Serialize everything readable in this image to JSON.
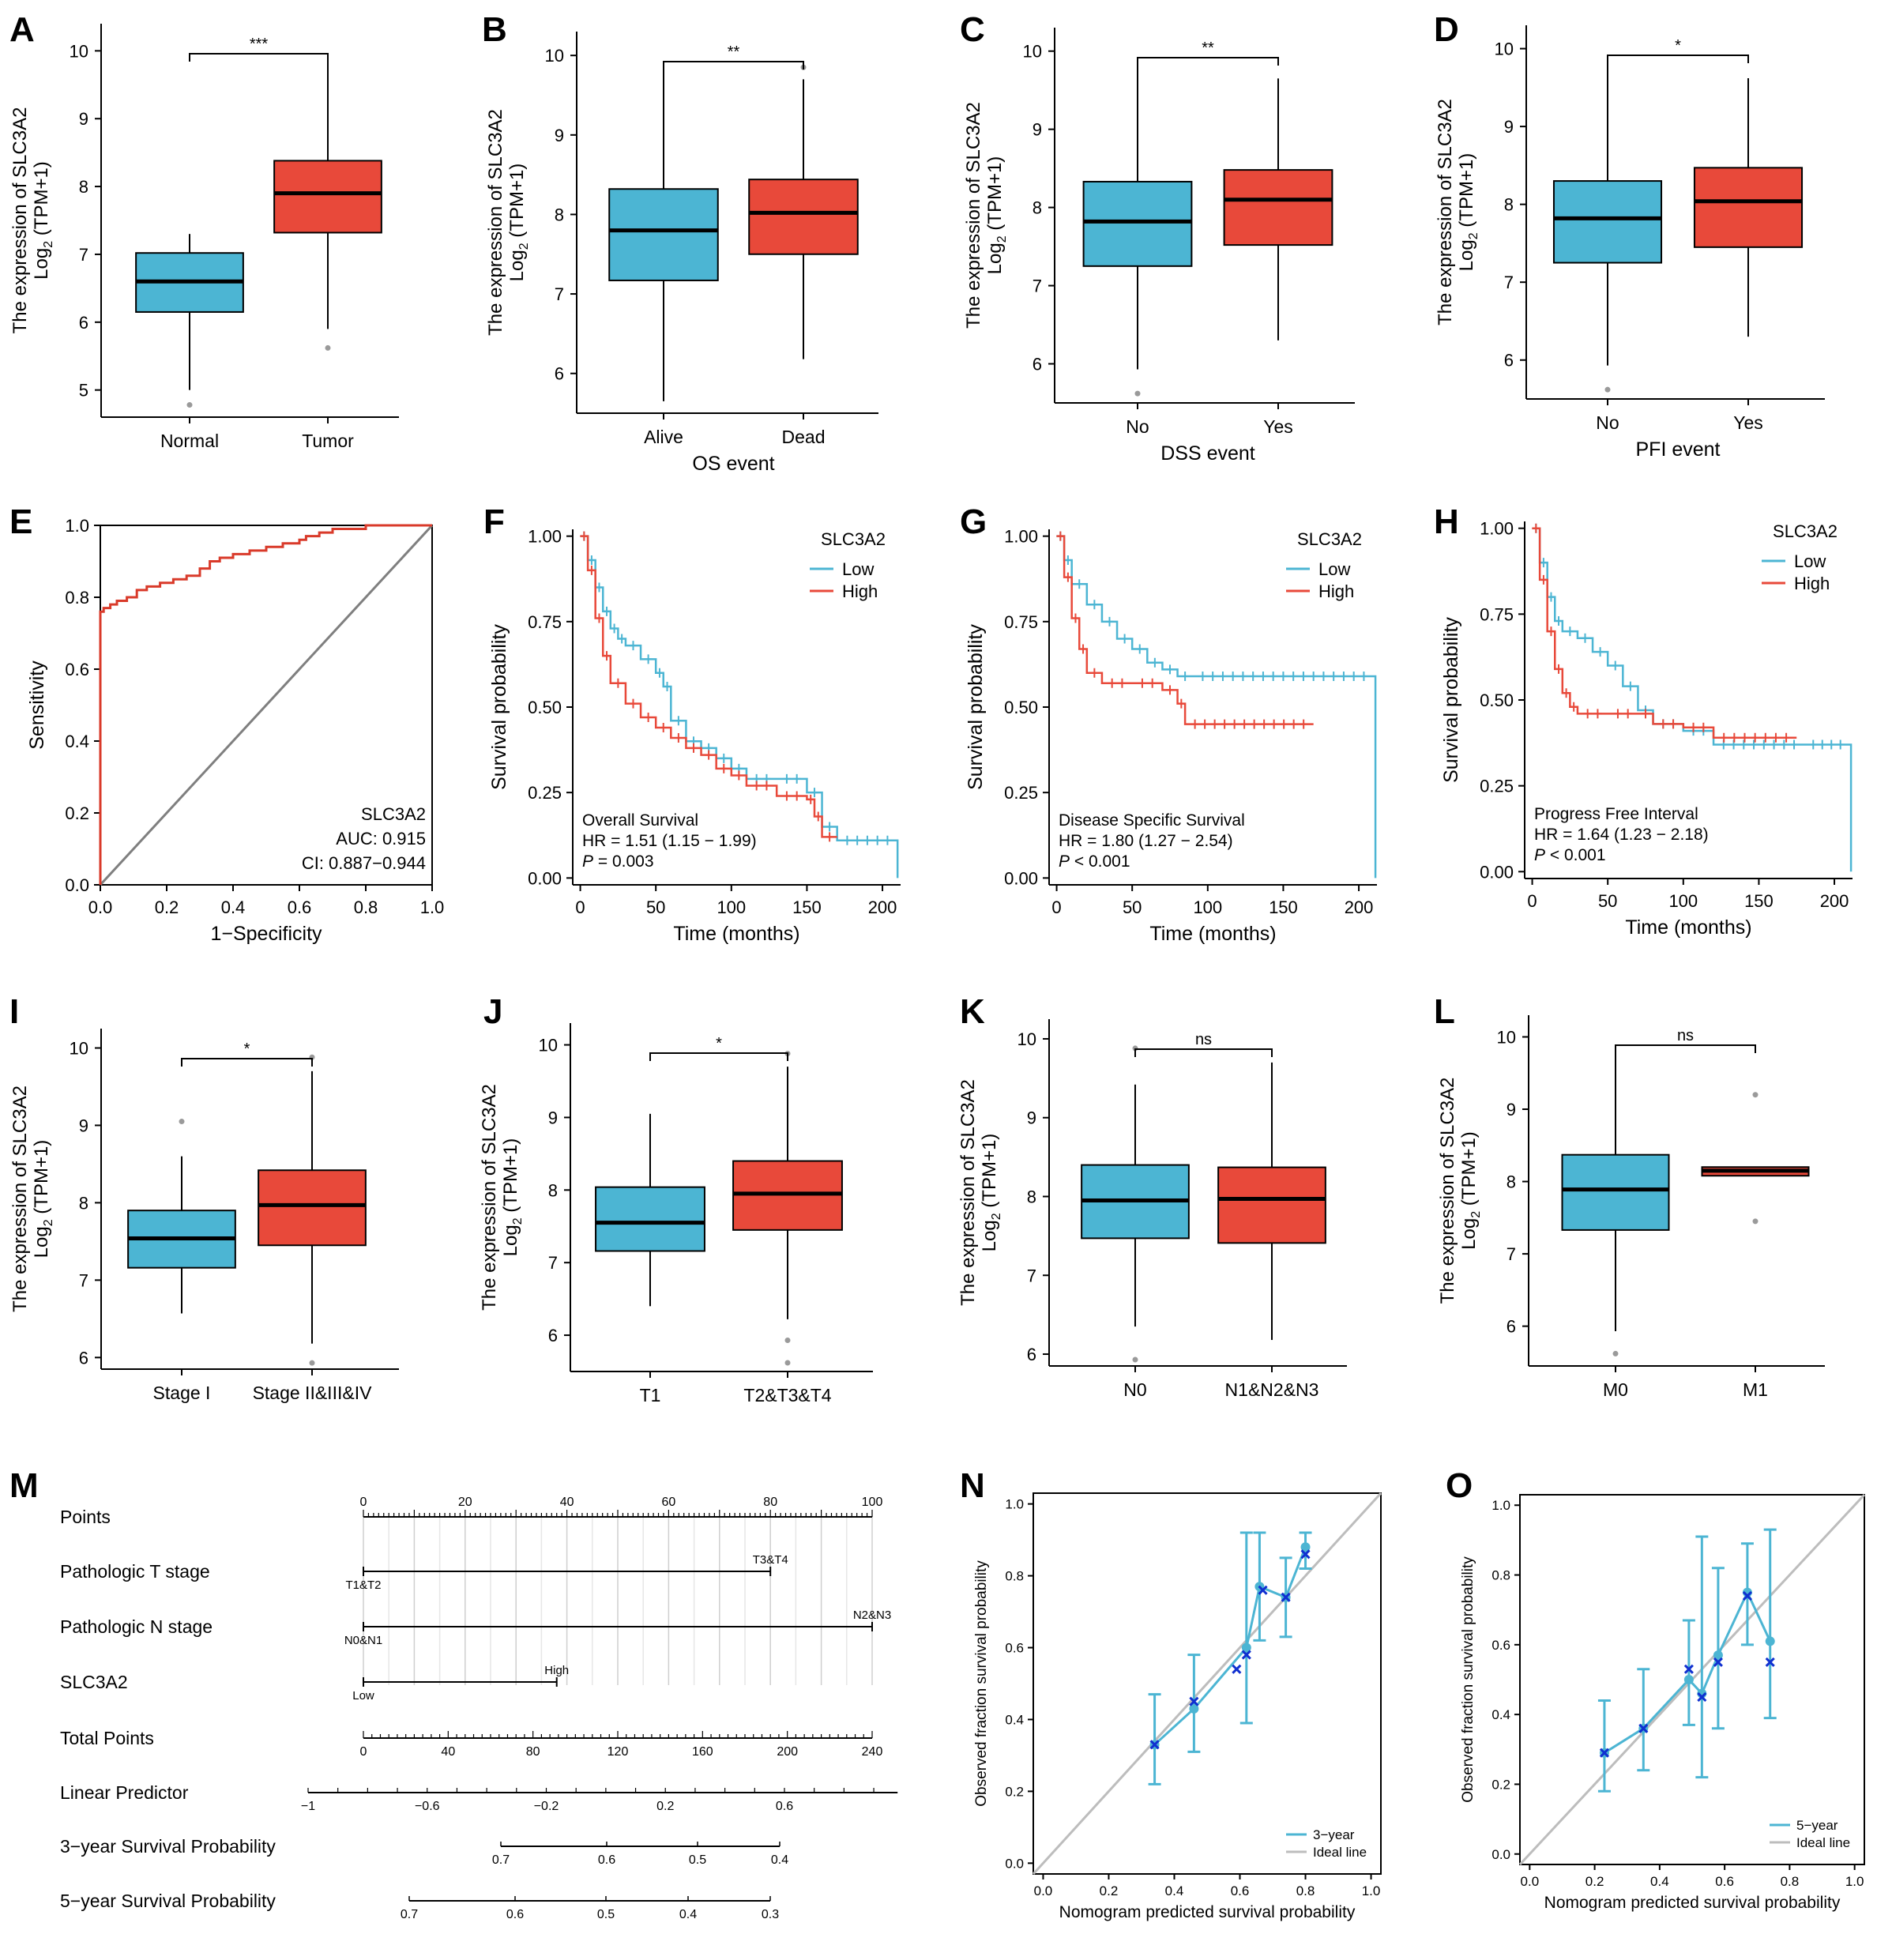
{
  "colors": {
    "low": "#4cb5d3",
    "high": "#e8493a",
    "axis": "#000000",
    "diag": "#7f7f7f",
    "roc": "#d93a2a",
    "calib": "#4cb5d3",
    "calibMark": "#1030d0",
    "ideal": "#bdbdbd",
    "outlier": "#9a9a9a"
  },
  "chart_data": [
    {
      "panel": "A",
      "type": "boxplot",
      "ylabel1": "The expression of SLC3A2",
      "ylabel2": "Log",
      "ylabel2_sub": "2",
      "ylabel2_tail": " (TPM+1)",
      "xlabel": "",
      "ylim": [
        4.6,
        10.4
      ],
      "yticks": [
        "5",
        "6",
        "7",
        "8",
        "9",
        "10"
      ],
      "categories": [
        "Normal",
        "Tumor"
      ],
      "sig": "***",
      "boxes": [
        {
          "q1": 6.15,
          "median": 6.6,
          "q3": 7.02,
          "whiskerLow": 5.0,
          "whiskerHigh": 7.3,
          "outliers": [
            4.78
          ]
        },
        {
          "q1": 7.32,
          "median": 7.9,
          "q3": 8.38,
          "whiskerLow": 5.9,
          "whiskerHigh": 9.85,
          "outliers": [
            5.62
          ]
        }
      ]
    },
    {
      "panel": "B",
      "type": "boxplot",
      "ylabel1": "The expression of SLC3A2",
      "ylabel2": "Log",
      "ylabel2_sub": "2",
      "ylabel2_tail": " (TPM+1)",
      "xlabel": "OS event",
      "ylim": [
        5.5,
        10.3
      ],
      "yticks": [
        "6",
        "7",
        "8",
        "9",
        "10"
      ],
      "categories": [
        "Alive",
        "Dead"
      ],
      "sig": "**",
      "boxes": [
        {
          "q1": 7.17,
          "median": 7.8,
          "q3": 8.32,
          "whiskerLow": 5.65,
          "whiskerHigh": 9.85,
          "outliers": []
        },
        {
          "q1": 7.5,
          "median": 8.02,
          "q3": 8.44,
          "whiskerLow": 6.18,
          "whiskerHigh": 9.7,
          "outliers": [
            9.85
          ]
        }
      ]
    },
    {
      "panel": "C",
      "type": "boxplot",
      "ylabel1": "The expression of SLC3A2",
      "ylabel2": "Log",
      "ylabel2_sub": "2",
      "ylabel2_tail": " (TPM+1)",
      "xlabel": "DSS event",
      "ylim": [
        5.5,
        10.3
      ],
      "yticks": [
        "6",
        "7",
        "8",
        "9",
        "10"
      ],
      "categories": [
        "No",
        "Yes"
      ],
      "sig": "**",
      "boxes": [
        {
          "q1": 7.25,
          "median": 7.82,
          "q3": 8.33,
          "whiskerLow": 5.93,
          "whiskerHigh": 9.85,
          "outliers": [
            5.62
          ]
        },
        {
          "q1": 7.52,
          "median": 8.1,
          "q3": 8.48,
          "whiskerLow": 6.3,
          "whiskerHigh": 9.65,
          "outliers": []
        }
      ]
    },
    {
      "panel": "D",
      "type": "boxplot",
      "ylabel1": "The expression of SLC3A2",
      "ylabel2": "Log",
      "ylabel2_sub": "2",
      "ylabel2_tail": " (TPM+1)",
      "xlabel": "PFI event",
      "ylim": [
        5.5,
        10.3
      ],
      "yticks": [
        "6",
        "7",
        "8",
        "9",
        "10"
      ],
      "categories": [
        "No",
        "Yes"
      ],
      "sig": "*",
      "boxes": [
        {
          "q1": 7.25,
          "median": 7.82,
          "q3": 8.3,
          "whiskerLow": 5.93,
          "whiskerHigh": 9.85,
          "outliers": [
            5.62
          ]
        },
        {
          "q1": 7.45,
          "median": 8.04,
          "q3": 8.47,
          "whiskerLow": 6.3,
          "whiskerHigh": 9.62,
          "outliers": []
        }
      ]
    },
    {
      "panel": "E",
      "type": "line",
      "subtype": "roc",
      "xlabel": "1−Specificity",
      "ylabel": "Sensitivity",
      "xlim": [
        0,
        1
      ],
      "ylim": [
        0,
        1
      ],
      "xticks": [
        "0.0",
        "0.2",
        "0.4",
        "0.6",
        "0.8",
        "1.0"
      ],
      "yticks": [
        "0.0",
        "0.2",
        "0.4",
        "0.6",
        "0.8",
        "1.0"
      ],
      "x": [
        0,
        0,
        0.01,
        0.03,
        0.05,
        0.08,
        0.11,
        0.14,
        0.18,
        0.22,
        0.26,
        0.3,
        0.33,
        0.36,
        0.4,
        0.45,
        0.5,
        0.55,
        0.6,
        0.62,
        0.66,
        0.7,
        0.75,
        0.8,
        0.86,
        0.92,
        1.0
      ],
      "y": [
        0,
        0.76,
        0.77,
        0.78,
        0.79,
        0.8,
        0.82,
        0.83,
        0.84,
        0.85,
        0.86,
        0.88,
        0.9,
        0.91,
        0.92,
        0.93,
        0.94,
        0.95,
        0.96,
        0.97,
        0.98,
        0.99,
        0.99,
        1.0,
        1.0,
        1.0,
        1.0
      ],
      "ann": [
        "SLC3A2",
        "AUC: 0.915",
        "CI: 0.887−0.944"
      ]
    },
    {
      "panel": "F",
      "type": "line",
      "subtype": "km",
      "xlabel": "Time (months)",
      "ylabel": "Survival probability",
      "xlim": [
        -5,
        212
      ],
      "ylim": [
        -0.02,
        1.02
      ],
      "xticks": [
        "0",
        "50",
        "100",
        "150",
        "200"
      ],
      "yticks": [
        "0.00",
        "0.25",
        "0.50",
        "0.75",
        "1.00"
      ],
      "legend_title": "SLC3A2",
      "legend": [
        "Low",
        "High"
      ],
      "ann": [
        "Overall Survival",
        "HR = 1.51 (1.15 − 1.99)",
        "P",
        " = 0.003"
      ],
      "series": [
        {
          "name": "Low",
          "x": [
            0,
            5,
            10,
            15,
            20,
            25,
            30,
            40,
            50,
            55,
            60,
            70,
            80,
            90,
            100,
            110,
            130,
            150,
            160,
            170,
            210
          ],
          "y": [
            1.0,
            0.93,
            0.85,
            0.78,
            0.73,
            0.7,
            0.68,
            0.64,
            0.6,
            0.56,
            0.46,
            0.4,
            0.38,
            0.35,
            0.32,
            0.29,
            0.29,
            0.25,
            0.15,
            0.11,
            0.0
          ]
        },
        {
          "name": "High",
          "x": [
            0,
            5,
            10,
            15,
            20,
            30,
            40,
            50,
            60,
            70,
            80,
            90,
            100,
            110,
            130,
            150,
            155,
            160,
            170
          ],
          "y": [
            1.0,
            0.9,
            0.76,
            0.65,
            0.57,
            0.51,
            0.47,
            0.44,
            0.41,
            0.38,
            0.36,
            0.32,
            0.3,
            0.27,
            0.24,
            0.23,
            0.18,
            0.12,
            0.12
          ]
        }
      ]
    },
    {
      "panel": "G",
      "type": "line",
      "subtype": "km",
      "xlabel": "Time (months)",
      "ylabel": "Survival probability",
      "xlim": [
        -5,
        212
      ],
      "ylim": [
        -0.02,
        1.02
      ],
      "xticks": [
        "0",
        "50",
        "100",
        "150",
        "200"
      ],
      "yticks": [
        "0.00",
        "0.25",
        "0.50",
        "0.75",
        "1.00"
      ],
      "legend_title": "SLC3A2",
      "legend": [
        "Low",
        "High"
      ],
      "ann": [
        "Disease Specific Survival",
        "HR = 1.80 (1.27 − 2.54)",
        "P",
        " < 0.001"
      ],
      "series": [
        {
          "name": "Low",
          "x": [
            0,
            5,
            10,
            20,
            30,
            40,
            50,
            60,
            70,
            80,
            90,
            210,
            211
          ],
          "y": [
            1.0,
            0.93,
            0.86,
            0.8,
            0.75,
            0.7,
            0.67,
            0.63,
            0.61,
            0.59,
            0.59,
            0.59,
            0.0
          ]
        },
        {
          "name": "High",
          "x": [
            0,
            5,
            10,
            15,
            20,
            30,
            50,
            70,
            80,
            85,
            170
          ],
          "y": [
            1.0,
            0.88,
            0.76,
            0.67,
            0.6,
            0.57,
            0.57,
            0.55,
            0.51,
            0.45,
            0.45
          ]
        }
      ]
    },
    {
      "panel": "H",
      "type": "line",
      "subtype": "km",
      "xlabel": "Time (months)",
      "ylabel": "Survival probability",
      "xlim": [
        -5,
        212
      ],
      "ylim": [
        -0.02,
        1.02
      ],
      "xticks": [
        "0",
        "50",
        "100",
        "150",
        "200"
      ],
      "yticks": [
        "0.00",
        "0.25",
        "0.50",
        "0.75",
        "1.00"
      ],
      "legend_title": "SLC3A2",
      "legend": [
        "Low",
        "High"
      ],
      "ann": [
        "Progress Free Interval",
        "HR = 1.64 (1.23 − 2.18)",
        "P",
        " < 0.001"
      ],
      "series": [
        {
          "name": "Low",
          "x": [
            0,
            5,
            10,
            15,
            20,
            30,
            40,
            50,
            60,
            70,
            80,
            100,
            120,
            180,
            210,
            211
          ],
          "y": [
            1.0,
            0.9,
            0.8,
            0.73,
            0.7,
            0.68,
            0.64,
            0.6,
            0.54,
            0.47,
            0.43,
            0.41,
            0.37,
            0.37,
            0.37,
            0.0
          ]
        },
        {
          "name": "High",
          "x": [
            0,
            5,
            10,
            15,
            20,
            25,
            30,
            50,
            70,
            80,
            100,
            120,
            175
          ],
          "y": [
            1.0,
            0.85,
            0.7,
            0.59,
            0.52,
            0.48,
            0.46,
            0.46,
            0.46,
            0.43,
            0.42,
            0.39,
            0.39
          ]
        }
      ]
    },
    {
      "panel": "I",
      "type": "boxplot",
      "ylabel1": "The expression of SLC3A2",
      "ylabel2": "Log",
      "ylabel2_sub": "2",
      "ylabel2_tail": " (TPM+1)",
      "xlabel": "",
      "ylim": [
        5.85,
        10.25
      ],
      "yticks": [
        "6",
        "7",
        "8",
        "9",
        "10"
      ],
      "categories": [
        "Stage I",
        "Stage II&III&IV"
      ],
      "sig": "*",
      "boxes": [
        {
          "q1": 7.16,
          "median": 7.54,
          "q3": 7.9,
          "whiskerLow": 6.57,
          "whiskerHigh": 8.6,
          "outliers": [
            9.05
          ]
        },
        {
          "q1": 7.45,
          "median": 7.97,
          "q3": 8.42,
          "whiskerLow": 6.18,
          "whiskerHigh": 9.7,
          "outliers": [
            9.88,
            5.93
          ]
        }
      ]
    },
    {
      "panel": "J",
      "type": "boxplot",
      "ylabel1": "The expression of SLC3A2",
      "ylabel2": "Log",
      "ylabel2_sub": "2",
      "ylabel2_tail": " (TPM+1)",
      "xlabel": "",
      "ylim": [
        5.5,
        10.3
      ],
      "yticks": [
        "6",
        "7",
        "8",
        "9",
        "10"
      ],
      "categories": [
        "T1",
        "T2&T3&T4"
      ],
      "sig": "*",
      "boxes": [
        {
          "q1": 7.16,
          "median": 7.55,
          "q3": 8.04,
          "whiskerLow": 6.4,
          "whiskerHigh": 9.05,
          "outliers": []
        },
        {
          "q1": 7.45,
          "median": 7.95,
          "q3": 8.4,
          "whiskerLow": 6.22,
          "whiskerHigh": 9.7,
          "outliers": [
            9.88,
            5.93,
            5.62
          ]
        }
      ]
    },
    {
      "panel": "K",
      "type": "boxplot",
      "ylabel1": "The expression of SLC3A2",
      "ylabel2": "Log",
      "ylabel2_sub": "2",
      "ylabel2_tail": " (TPM+1)",
      "xlabel": "",
      "ylim": [
        5.85,
        10.25
      ],
      "yticks": [
        "6",
        "7",
        "8",
        "9",
        "10"
      ],
      "categories": [
        "N0",
        "N1&N2&N3"
      ],
      "sig": "ns",
      "boxes": [
        {
          "q1": 7.47,
          "median": 7.95,
          "q3": 8.4,
          "whiskerLow": 6.35,
          "whiskerHigh": 9.42,
          "outliers": [
            9.88,
            5.93
          ]
        },
        {
          "q1": 7.41,
          "median": 7.97,
          "q3": 8.37,
          "whiskerLow": 6.18,
          "whiskerHigh": 9.7,
          "outliers": []
        }
      ]
    },
    {
      "panel": "L",
      "type": "boxplot",
      "ylabel1": "The expression of SLC3A2",
      "ylabel2": "Log",
      "ylabel2_sub": "2",
      "ylabel2_tail": " (TPM+1)",
      "xlabel": "",
      "ylim": [
        5.45,
        10.3
      ],
      "yticks": [
        "6",
        "7",
        "8",
        "9",
        "10"
      ],
      "categories": [
        "M0",
        "M1"
      ],
      "sig": "ns",
      "boxes": [
        {
          "q1": 7.33,
          "median": 7.89,
          "q3": 8.37,
          "whiskerLow": 5.93,
          "whiskerHigh": 9.85,
          "outliers": [
            5.62
          ]
        },
        {
          "q1": 8.08,
          "median": 8.15,
          "q3": 8.2,
          "whiskerLow": 8.08,
          "whiskerHigh": 8.2,
          "outliers": [
            9.2,
            7.45
          ]
        }
      ]
    },
    {
      "panel": "M",
      "type": "table",
      "subtype": "nomogram",
      "rows": [
        "Points",
        "Pathologic T stage",
        "Pathologic N stage",
        "SLC3A2",
        "Total Points",
        "Linear Predictor",
        "3−year Survival Probability",
        "5−year Survival Probability"
      ],
      "points_scale": {
        "min": 0,
        "max": 100,
        "labels": [
          "0",
          "20",
          "40",
          "60",
          "80",
          "100"
        ]
      },
      "t_stage": {
        "low_label": "T1&T2",
        "high_label": "T3&T4",
        "low_points": 0,
        "high_points": 80
      },
      "n_stage": {
        "low_label": "N0&N1",
        "high_label": "N2&N3",
        "low_points": 0,
        "high_points": 100
      },
      "slc3a2": {
        "low_label": "Low",
        "high_label": "High",
        "low_points": 0,
        "high_points": 38
      },
      "total_points": {
        "min": 0,
        "max": 240,
        "labels": [
          "0",
          "40",
          "80",
          "120",
          "160",
          "200",
          "240"
        ]
      },
      "linear_predictor": {
        "labels": [
          "−1",
          "−0.6",
          "−0.2",
          "0.2",
          "0.6"
        ],
        "values": [
          -1,
          -0.6,
          -0.2,
          0.2,
          0.6
        ]
      },
      "surv3": {
        "labels": [
          "0.7",
          "0.6",
          "0.5",
          "0.4"
        ],
        "values": [
          0.7,
          0.6,
          0.5,
          0.4
        ]
      },
      "surv5": {
        "labels": [
          "0.7",
          "0.6",
          "0.5",
          "0.4",
          "0.3"
        ],
        "values": [
          0.7,
          0.6,
          0.5,
          0.4,
          0.3
        ]
      }
    },
    {
      "panel": "N",
      "type": "line",
      "subtype": "calibration",
      "xlabel": "Nomogram predicted survival probability",
      "ylabel": "Observed fraction survival probability",
      "xlim": [
        -0.03,
        1.03
      ],
      "ylim": [
        -0.03,
        1.03
      ],
      "xticks": [
        "0.0",
        "0.2",
        "0.4",
        "0.6",
        "0.8",
        "1.0"
      ],
      "yticks": [
        "0.0",
        "0.2",
        "0.4",
        "0.6",
        "0.8",
        "1.0"
      ],
      "legend": [
        "3−year",
        "Ideal line"
      ],
      "points": [
        {
          "x": 0.34,
          "y": 0.33,
          "lo": 0.22,
          "hi": 0.47
        },
        {
          "x": 0.46,
          "y": 0.43,
          "lo": 0.31,
          "hi": 0.58
        },
        {
          "x": 0.62,
          "y": 0.6,
          "lo": 0.39,
          "hi": 0.92
        },
        {
          "x": 0.66,
          "y": 0.77,
          "lo": 0.62,
          "hi": 0.92
        },
        {
          "x": 0.74,
          "y": 0.74,
          "lo": 0.63,
          "hi": 0.85
        },
        {
          "x": 0.8,
          "y": 0.88,
          "lo": 0.82,
          "hi": 0.92
        }
      ],
      "marks": [
        {
          "x": 0.34,
          "y": 0.33
        },
        {
          "x": 0.46,
          "y": 0.45
        },
        {
          "x": 0.59,
          "y": 0.54
        },
        {
          "x": 0.62,
          "y": 0.58
        },
        {
          "x": 0.67,
          "y": 0.76
        },
        {
          "x": 0.74,
          "y": 0.74
        },
        {
          "x": 0.8,
          "y": 0.86
        }
      ]
    },
    {
      "panel": "O",
      "type": "line",
      "subtype": "calibration",
      "xlabel": "Nomogram predicted survival probability",
      "ylabel": "Observed fraction survival probability",
      "xlim": [
        -0.03,
        1.03
      ],
      "ylim": [
        -0.03,
        1.03
      ],
      "xticks": [
        "0.0",
        "0.2",
        "0.4",
        "0.6",
        "0.8",
        "1.0"
      ],
      "yticks": [
        "0.0",
        "0.2",
        "0.4",
        "0.6",
        "0.8",
        "1.0"
      ],
      "legend": [
        "5−year",
        "Ideal line"
      ],
      "points": [
        {
          "x": 0.23,
          "y": 0.29,
          "lo": 0.18,
          "hi": 0.44
        },
        {
          "x": 0.35,
          "y": 0.36,
          "lo": 0.24,
          "hi": 0.53
        },
        {
          "x": 0.49,
          "y": 0.5,
          "lo": 0.37,
          "hi": 0.67
        },
        {
          "x": 0.53,
          "y": 0.46,
          "lo": 0.22,
          "hi": 0.91
        },
        {
          "x": 0.58,
          "y": 0.57,
          "lo": 0.36,
          "hi": 0.82
        },
        {
          "x": 0.67,
          "y": 0.75,
          "lo": 0.6,
          "hi": 0.89
        },
        {
          "x": 0.74,
          "y": 0.61,
          "lo": 0.39,
          "hi": 0.93
        }
      ],
      "marks": [
        {
          "x": 0.23,
          "y": 0.29
        },
        {
          "x": 0.35,
          "y": 0.36
        },
        {
          "x": 0.49,
          "y": 0.53
        },
        {
          "x": 0.53,
          "y": 0.45
        },
        {
          "x": 0.58,
          "y": 0.55
        },
        {
          "x": 0.67,
          "y": 0.74
        },
        {
          "x": 0.74,
          "y": 0.55
        }
      ]
    }
  ]
}
